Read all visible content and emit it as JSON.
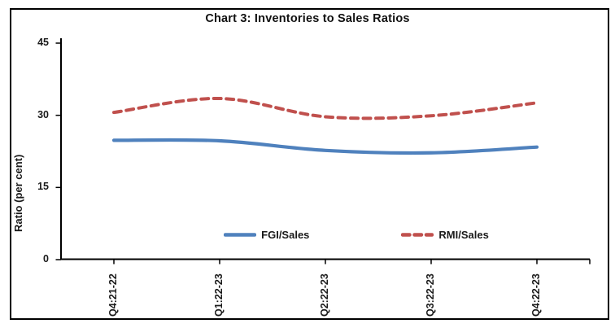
{
  "chart_data": {
    "type": "line",
    "title": "Chart 3: Inventories to Sales Ratios",
    "xlabel": "",
    "ylabel": "Ratio (per cent)",
    "categories": [
      "Q4:21-22",
      "Q1:22-23",
      "Q2:22-23",
      "Q3:22-23",
      "Q4:22-23"
    ],
    "series": [
      {
        "name": "FGI/Sales",
        "values": [
          24.8,
          24.7,
          22.7,
          22.2,
          23.4
        ],
        "color": "#4F81BD",
        "style": "solid"
      },
      {
        "name": "RMI/Sales",
        "values": [
          30.6,
          33.5,
          29.7,
          29.9,
          32.6
        ],
        "color": "#C0504D",
        "style": "dashed"
      }
    ],
    "ylim": [
      0,
      45
    ],
    "yticks": [
      0,
      15,
      30,
      45
    ],
    "grid": false,
    "legend_position": "bottom-inside",
    "axis_color": "#000000",
    "text_color": "#1a1a1a",
    "smooth_lines": true
  }
}
